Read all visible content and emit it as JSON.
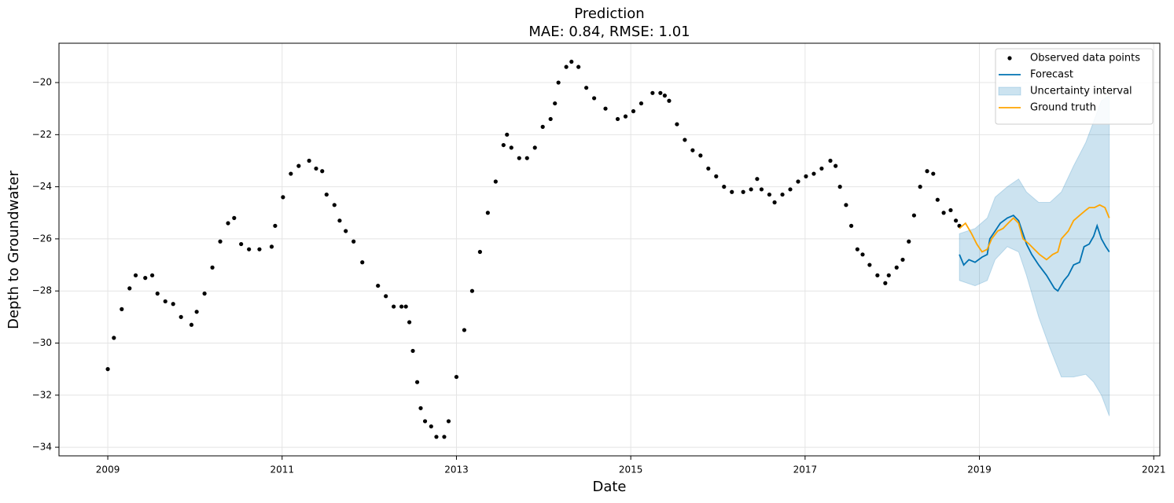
{
  "chart_data": {
    "type": "forecast",
    "title": "Prediction",
    "subtitle": "MAE: 0.84, RMSE: 1.01",
    "xlabel": "Date",
    "ylabel": "Depth to Groundwater",
    "xlim": [
      2008.44,
      2021.07
    ],
    "xticks": [
      2009,
      2011,
      2013,
      2015,
      2017,
      2019,
      2021
    ],
    "ylim": [
      -34.33,
      -18.49
    ],
    "yticks": [
      {
        "value": -20,
        "label": "−20"
      },
      {
        "value": -22,
        "label": "−22"
      },
      {
        "value": -24,
        "label": "−24"
      },
      {
        "value": -26,
        "label": "−26"
      },
      {
        "value": -28,
        "label": "−28"
      },
      {
        "value": -30,
        "label": "−30"
      },
      {
        "value": -32,
        "label": "−32"
      },
      {
        "value": -34,
        "label": "−34"
      }
    ],
    "grid": true,
    "legend": "upper-right",
    "series": [
      {
        "name": "Observed data points",
        "type": "scatter",
        "color": "#000000",
        "x": [
          2009.0,
          2009.07,
          2009.16,
          2009.25,
          2009.32,
          2009.43,
          2009.51,
          2009.57,
          2009.66,
          2009.75,
          2009.84,
          2009.96,
          2010.02,
          2010.11,
          2010.2,
          2010.29,
          2010.38,
          2010.45,
          2010.53,
          2010.62,
          2010.74,
          2010.88,
          2010.92,
          2011.01,
          2011.1,
          2011.19,
          2011.31,
          2011.39,
          2011.46,
          2011.51,
          2011.6,
          2011.66,
          2011.73,
          2011.82,
          2011.92,
          2012.1,
          2012.19,
          2012.28,
          2012.37,
          2012.42,
          2012.46,
          2012.5,
          2012.55,
          2012.59,
          2012.64,
          2012.71,
          2012.77,
          2012.86,
          2012.91,
          2013.0,
          2013.09,
          2013.18,
          2013.27,
          2013.36,
          2013.45,
          2013.54,
          2013.58,
          2013.63,
          2013.72,
          2013.81,
          2013.9,
          2013.99,
          2014.08,
          2014.13,
          2014.17,
          2014.26,
          2014.32,
          2014.4,
          2014.49,
          2014.58,
          2014.71,
          2014.85,
          2014.94,
          2015.03,
          2015.12,
          2015.25,
          2015.34,
          2015.39,
          2015.44,
          2015.53,
          2015.62,
          2015.71,
          2015.8,
          2015.89,
          2015.98,
          2016.07,
          2016.16,
          2016.29,
          2016.38,
          2016.45,
          2016.5,
          2016.59,
          2016.65,
          2016.74,
          2016.83,
          2016.92,
          2017.01,
          2017.1,
          2017.19,
          2017.29,
          2017.35,
          2017.4,
          2017.47,
          2017.53,
          2017.6,
          2017.66,
          2017.74,
          2017.83,
          2017.92,
          2017.96,
          2018.05,
          2018.12,
          2018.19,
          2018.25,
          2018.32,
          2018.4,
          2018.47,
          2018.52,
          2018.59,
          2018.67,
          2018.73,
          2018.77
        ],
        "values": [
          -31.0,
          -29.8,
          -28.7,
          -27.9,
          -27.4,
          -27.5,
          -27.4,
          -28.1,
          -28.4,
          -28.5,
          -29.0,
          -29.3,
          -28.8,
          -28.1,
          -27.1,
          -26.1,
          -25.4,
          -25.2,
          -26.2,
          -26.4,
          -26.4,
          -26.3,
          -25.5,
          -24.4,
          -23.5,
          -23.2,
          -23.0,
          -23.3,
          -23.4,
          -24.3,
          -24.7,
          -25.3,
          -25.7,
          -26.1,
          -26.9,
          -27.8,
          -28.2,
          -28.6,
          -28.6,
          -28.6,
          -29.2,
          -30.3,
          -31.5,
          -32.5,
          -33.0,
          -33.2,
          -33.6,
          -33.6,
          -33.0,
          -31.3,
          -29.5,
          -28.0,
          -26.5,
          -25.0,
          -23.8,
          -22.4,
          -22.0,
          -22.5,
          -22.9,
          -22.9,
          -22.5,
          -21.7,
          -21.4,
          -20.8,
          -20.0,
          -19.4,
          -19.2,
          -19.4,
          -20.2,
          -20.6,
          -21.0,
          -21.4,
          -21.3,
          -21.1,
          -20.8,
          -20.4,
          -20.4,
          -20.5,
          -20.7,
          -21.6,
          -22.2,
          -22.6,
          -22.8,
          -23.3,
          -23.6,
          -24.0,
          -24.2,
          -24.2,
          -24.1,
          -23.7,
          -24.1,
          -24.3,
          -24.6,
          -24.3,
          -24.1,
          -23.8,
          -23.6,
          -23.5,
          -23.3,
          -23.0,
          -23.2,
          -24.0,
          -24.7,
          -25.5,
          -26.4,
          -26.6,
          -27.0,
          -27.4,
          -27.7,
          -27.4,
          -27.1,
          -26.8,
          -26.1,
          -25.1,
          -24.0,
          -23.4,
          -23.5,
          -24.5,
          -25.0,
          -24.9,
          -25.3,
          -25.5
        ]
      },
      {
        "name": "Forecast",
        "type": "line",
        "color": "#0072B2",
        "x": [
          2018.77,
          2018.82,
          2018.88,
          2018.95,
          2019.03,
          2019.09,
          2019.12,
          2019.18,
          2019.24,
          2019.32,
          2019.39,
          2019.45,
          2019.5,
          2019.54,
          2019.6,
          2019.68,
          2019.77,
          2019.86,
          2019.9,
          2019.97,
          2020.02,
          2020.08,
          2020.15,
          2020.2,
          2020.26,
          2020.31,
          2020.35,
          2020.4,
          2020.45,
          2020.49
        ],
        "values": [
          -26.6,
          -27.0,
          -26.8,
          -26.9,
          -26.7,
          -26.6,
          -26.0,
          -25.7,
          -25.4,
          -25.2,
          -25.1,
          -25.3,
          -25.8,
          -26.2,
          -26.6,
          -27.0,
          -27.4,
          -27.9,
          -28.0,
          -27.6,
          -27.4,
          -27.0,
          -26.9,
          -26.3,
          -26.2,
          -25.9,
          -25.5,
          -26.0,
          -26.3,
          -26.5
        ]
      },
      {
        "name": "Uncertainty interval",
        "type": "band",
        "color": "#0072B2",
        "x": [
          2018.77,
          2018.95,
          2019.09,
          2019.18,
          2019.32,
          2019.45,
          2019.54,
          2019.68,
          2019.81,
          2019.94,
          2020.08,
          2020.22,
          2020.31,
          2020.4,
          2020.49
        ],
        "lower": [
          -27.6,
          -27.8,
          -27.6,
          -26.8,
          -26.3,
          -26.5,
          -27.4,
          -29.0,
          -30.2,
          -31.3,
          -31.3,
          -31.2,
          -31.5,
          -32.0,
          -32.8
        ],
        "upper": [
          -25.8,
          -25.6,
          -25.2,
          -24.4,
          -24.0,
          -23.7,
          -24.2,
          -24.6,
          -24.6,
          -24.2,
          -23.2,
          -22.3,
          -21.5,
          -20.7,
          -20.5
        ]
      },
      {
        "name": "Ground truth",
        "type": "line",
        "color": "#FFA500",
        "x": [
          2018.77,
          2018.84,
          2018.91,
          2018.97,
          2019.03,
          2019.09,
          2019.14,
          2019.21,
          2019.27,
          2019.33,
          2019.39,
          2019.45,
          2019.5,
          2019.57,
          2019.63,
          2019.69,
          2019.77,
          2019.84,
          2019.9,
          2019.94,
          2020.02,
          2020.08,
          2020.15,
          2020.22,
          2020.26,
          2020.32,
          2020.38,
          2020.44,
          2020.49
        ],
        "values": [
          -25.6,
          -25.4,
          -25.8,
          -26.2,
          -26.5,
          -26.4,
          -26.0,
          -25.7,
          -25.6,
          -25.4,
          -25.2,
          -25.4,
          -26.0,
          -26.2,
          -26.4,
          -26.6,
          -26.8,
          -26.6,
          -26.5,
          -26.0,
          -25.7,
          -25.3,
          -25.1,
          -24.9,
          -24.8,
          -24.8,
          -24.7,
          -24.8,
          -25.2
        ]
      }
    ]
  }
}
